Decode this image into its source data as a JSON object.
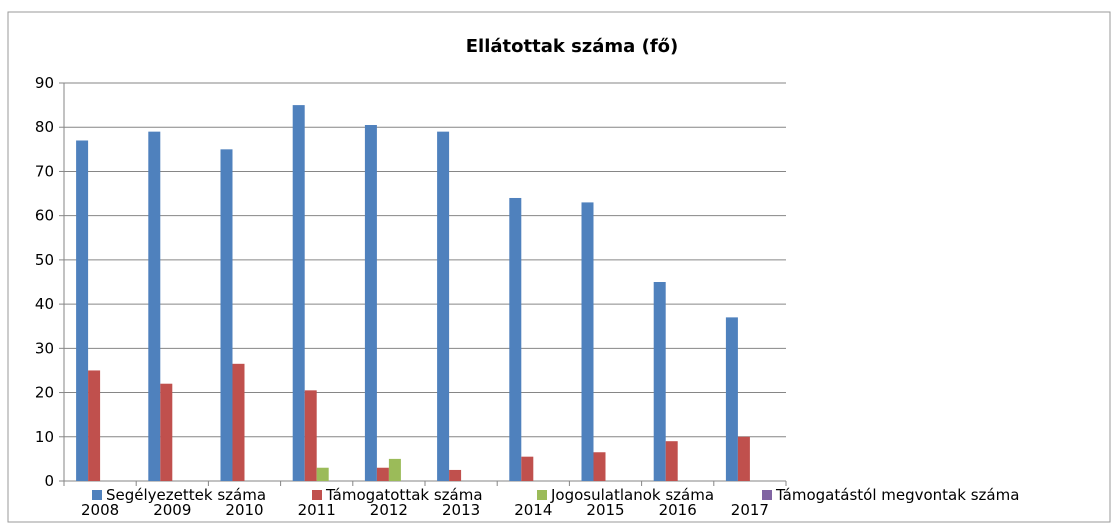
{
  "chart_data": {
    "type": "bar",
    "title": "Ellátottak száma (fő)",
    "xlabel": "",
    "ylabel": "",
    "categories": [
      "2008",
      "2009",
      "2010",
      "2011",
      "2012",
      "2013",
      "2014",
      "2015",
      "2016",
      "2017"
    ],
    "ylim": [
      0,
      90
    ],
    "yticks": [
      0,
      10,
      20,
      30,
      40,
      50,
      60,
      70,
      80,
      90
    ],
    "grid": true,
    "legend_position": "bottom",
    "series": [
      {
        "name": "Segélyezettek száma",
        "color": "#4F81BD",
        "values": [
          77,
          79,
          75,
          85,
          80.5,
          79,
          64,
          63,
          45,
          37
        ]
      },
      {
        "name": "Támogatottak száma",
        "color": "#C0504D",
        "values": [
          25,
          22,
          26.5,
          20.5,
          3,
          2.5,
          5.5,
          6.5,
          9,
          10
        ]
      },
      {
        "name": "Jogosulatlanok száma",
        "color": "#9BBB59",
        "values": [
          0,
          0,
          0,
          3,
          5,
          0,
          0,
          0,
          0,
          0
        ]
      },
      {
        "name": "Támogatástól megvontak száma",
        "color": "#8064A2",
        "values": [
          0,
          0,
          0,
          0,
          0,
          0,
          0,
          0,
          0,
          0
        ]
      }
    ]
  }
}
